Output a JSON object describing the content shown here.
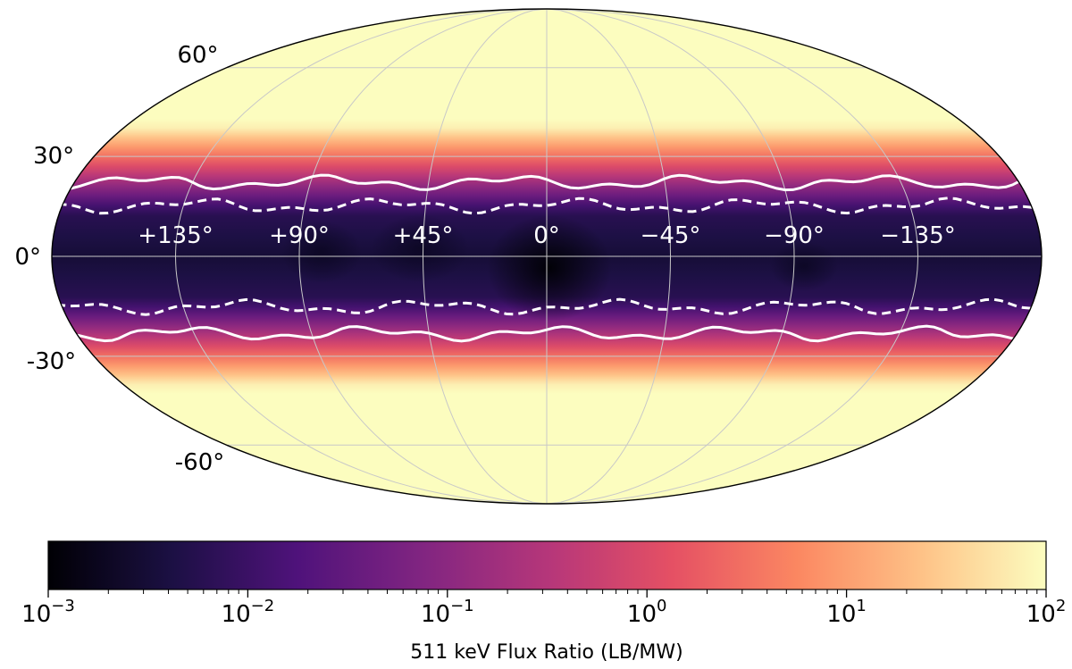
{
  "chart_data": {
    "type": "heatmap",
    "projection": "mollweide",
    "lat_ticks": [
      {
        "value": 60,
        "label": "60°"
      },
      {
        "value": 30,
        "label": "30°"
      },
      {
        "value": 0,
        "label": "0°"
      },
      {
        "value": -30,
        "label": "-30°"
      },
      {
        "value": -60,
        "label": "-60°"
      }
    ],
    "lon_ticks": [
      {
        "value": 135,
        "label": "+135°"
      },
      {
        "value": 90,
        "label": "+90°"
      },
      {
        "value": 45,
        "label": "+45°"
      },
      {
        "value": 0,
        "label": "0°"
      },
      {
        "value": -45,
        "label": "−45°"
      },
      {
        "value": -90,
        "label": "−90°"
      },
      {
        "value": -135,
        "label": "−135°"
      }
    ],
    "band": {
      "core_half_width_deg": 13,
      "solid_contour_north_deg": 22,
      "solid_contour_south_deg": -23,
      "dashed_contour_north_deg": 15,
      "dashed_contour_south_deg": -15
    },
    "colorbar": {
      "colormap": "magma",
      "scale": "log",
      "range": [
        0.001,
        100
      ],
      "ticks": [
        {
          "value": 0.001,
          "base": "10",
          "exp": "−3"
        },
        {
          "value": 0.01,
          "base": "10",
          "exp": "−2"
        },
        {
          "value": 0.1,
          "base": "10",
          "exp": "−1"
        },
        {
          "value": 1,
          "base": "10",
          "exp": "0"
        },
        {
          "value": 10,
          "base": "10",
          "exp": "1"
        },
        {
          "value": 100,
          "base": "10",
          "exp": "2"
        }
      ],
      "label": "511 keV Flux Ratio (LB/MW)"
    },
    "colors": {
      "magma": [
        "#000004",
        "#1c1044",
        "#4f127b",
        "#812581",
        "#b5367a",
        "#e55064",
        "#fb8761",
        "#fec287",
        "#fcfdbf"
      ],
      "contour": "#ffffff",
      "grid": "#c8c8c8"
    }
  }
}
